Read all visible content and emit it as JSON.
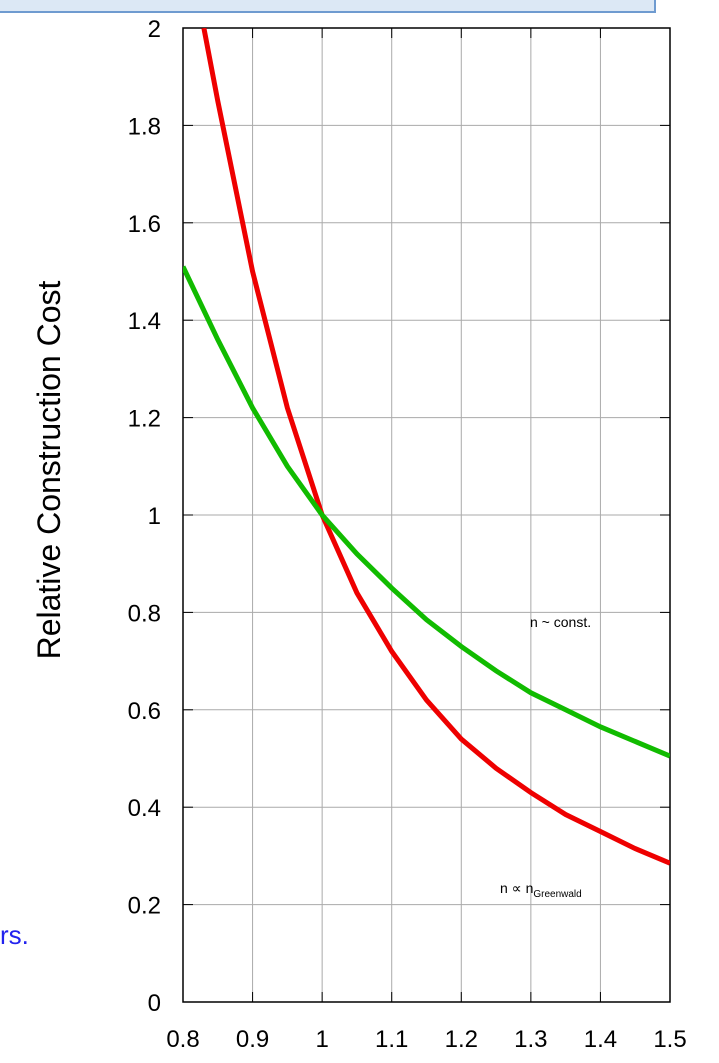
{
  "chart_data": {
    "type": "line",
    "y_label": "Relative Construction Cost",
    "annotations": [
      {
        "text": "n ~ const."
      },
      {
        "text": "n ∝ n",
        "subscript": "Greenwald"
      }
    ],
    "side_text": "rs.",
    "series": [
      {
        "color": "#ee0000",
        "x": [
          0.83,
          0.85,
          0.9,
          0.95,
          1.0,
          1.05,
          1.1,
          1.15,
          1.2,
          1.25,
          1.3,
          1.35,
          1.4,
          1.45,
          1.5
        ],
        "values": [
          2.0,
          1.85,
          1.5,
          1.22,
          1.0,
          0.84,
          0.72,
          0.62,
          0.54,
          0.48,
          0.43,
          0.385,
          0.35,
          0.315,
          0.285
        ]
      },
      {
        "color": "#11bb00",
        "x": [
          0.8,
          0.85,
          0.9,
          0.95,
          1.0,
          1.05,
          1.1,
          1.15,
          1.2,
          1.25,
          1.3,
          1.35,
          1.4,
          1.45,
          1.5
        ],
        "values": [
          1.51,
          1.36,
          1.22,
          1.1,
          1.0,
          0.92,
          0.85,
          0.785,
          0.73,
          0.68,
          0.635,
          0.6,
          0.565,
          0.535,
          0.505
        ]
      }
    ],
    "xlim": [
      0.8,
      1.5
    ],
    "xticks": [
      0.8,
      0.9,
      1,
      1.1,
      1.2,
      1.3,
      1.4,
      1.5
    ],
    "ylim": [
      0,
      2
    ],
    "yticks": [
      0,
      0.2,
      0.4,
      0.6,
      0.8,
      1,
      1.2,
      1.4,
      1.6,
      1.8,
      2
    ],
    "grid": true
  }
}
